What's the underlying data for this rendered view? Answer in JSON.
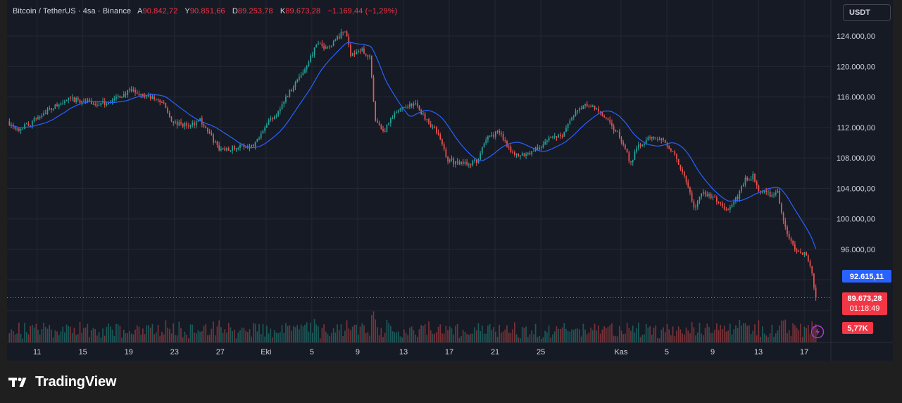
{
  "legend": {
    "symbol": "Bitcoin / TetherUS · 4sa · Binance",
    "open_label": "A",
    "open_value": "90.842,72",
    "high_label": "Y",
    "high_value": "90.851,66",
    "low_label": "D",
    "low_value": "89.253,78",
    "close_label": "K",
    "close_value": "89.673,28",
    "change": "−1.169,44 (−1,29%)"
  },
  "unit_button": "USDT",
  "brand": "TradingView",
  "colors": {
    "up": "#26a69a",
    "down": "#ef5350",
    "ma": "#2962ff",
    "background": "#161a25",
    "grid": "#242833"
  },
  "chart_data": {
    "type": "candlestick",
    "symbol": "BTCUSDT",
    "timeframe": "4h",
    "exchange": "Binance",
    "y_ticks": [
      100000,
      104000,
      108000,
      112000,
      116000,
      120000,
      124000,
      96000
    ],
    "y_tick_labels": [
      "100.000,00",
      "104.000,00",
      "108.000,00",
      "112.000,00",
      "116.000,00",
      "120.000,00",
      "124.000,00",
      "96.000,00"
    ],
    "ylim": [
      86500,
      126800
    ],
    "x_tick_labels": [
      "11",
      "15",
      "19",
      "23",
      "27",
      "Eki",
      "5",
      "9",
      "13",
      "17",
      "21",
      "25",
      "Kas",
      "5",
      "9",
      "13",
      "17"
    ],
    "x_tick_days": [
      11,
      15,
      19,
      23,
      27,
      31,
      35,
      39,
      43,
      47,
      51,
      55,
      62,
      66,
      70,
      74,
      78
    ],
    "day_start": 8.5,
    "day_end": 79.1,
    "price_path": [
      [
        8.5,
        112800
      ],
      [
        9.5,
        111800
      ],
      [
        10.5,
        112500
      ],
      [
        11.5,
        113800
      ],
      [
        12.8,
        114800
      ],
      [
        13.8,
        115600
      ],
      [
        15.0,
        115500
      ],
      [
        16.5,
        115000
      ],
      [
        17.5,
        115400
      ],
      [
        18.5,
        116200
      ],
      [
        19.3,
        116800
      ],
      [
        20.5,
        116100
      ],
      [
        22.0,
        115400
      ],
      [
        23.0,
        112500
      ],
      [
        24.5,
        112200
      ],
      [
        25.3,
        113100
      ],
      [
        26.3,
        110800
      ],
      [
        27.0,
        109100
      ],
      [
        28.0,
        109300
      ],
      [
        29.0,
        109500
      ],
      [
        30.0,
        109600
      ],
      [
        31.0,
        112300
      ],
      [
        32.0,
        113800
      ],
      [
        33.5,
        117500
      ],
      [
        34.5,
        119700
      ],
      [
        35.5,
        122800
      ],
      [
        36.5,
        122500
      ],
      [
        37.3,
        123700
      ],
      [
        38.0,
        124700
      ],
      [
        38.5,
        121700
      ],
      [
        39.5,
        122100
      ],
      [
        40.2,
        121300
      ],
      [
        40.6,
        113000
      ],
      [
        41.3,
        111200
      ],
      [
        42.2,
        113400
      ],
      [
        43.0,
        114800
      ],
      [
        44.2,
        115000
      ],
      [
        45.0,
        113300
      ],
      [
        46.0,
        111500
      ],
      [
        47.0,
        107800
      ],
      [
        48.0,
        107200
      ],
      [
        49.5,
        107500
      ],
      [
        50.5,
        110800
      ],
      [
        51.5,
        111400
      ],
      [
        52.2,
        109700
      ],
      [
        53.0,
        108200
      ],
      [
        54.3,
        108800
      ],
      [
        55.2,
        109600
      ],
      [
        56.0,
        110700
      ],
      [
        57.0,
        111100
      ],
      [
        58.0,
        113700
      ],
      [
        59.0,
        114900
      ],
      [
        60.0,
        114400
      ],
      [
        61.0,
        112700
      ],
      [
        62.0,
        110800
      ],
      [
        63.0,
        107300
      ],
      [
        63.5,
        109500
      ],
      [
        64.2,
        110200
      ],
      [
        65.2,
        110800
      ],
      [
        66.0,
        110200
      ],
      [
        67.0,
        107800
      ],
      [
        67.5,
        106000
      ],
      [
        68.0,
        104000
      ],
      [
        68.5,
        101400
      ],
      [
        69.3,
        103500
      ],
      [
        70.3,
        102700
      ],
      [
        71.3,
        101000
      ],
      [
        72.2,
        102600
      ],
      [
        73.0,
        105100
      ],
      [
        73.7,
        105600
      ],
      [
        74.3,
        103500
      ],
      [
        75.2,
        103200
      ],
      [
        75.8,
        103600
      ],
      [
        76.3,
        99800
      ],
      [
        77.0,
        96800
      ],
      [
        77.8,
        95600
      ],
      [
        78.3,
        95500
      ],
      [
        78.7,
        93900
      ],
      [
        79.1,
        89673
      ]
    ],
    "current_price": 89673.28,
    "current_price_label": "89.673,28",
    "countdown": "01:18:49",
    "ma_value_label": "92.615,11",
    "volume_label": "5,77K"
  }
}
